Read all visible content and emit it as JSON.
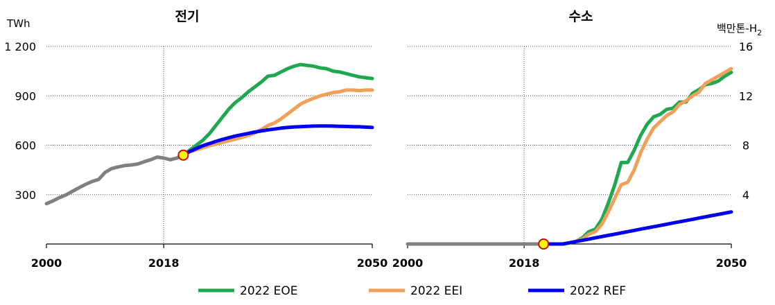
{
  "chart_data": [
    {
      "type": "line",
      "title": "전기",
      "ylabel": "TWh",
      "xlim": [
        2000,
        2050
      ],
      "ylim": [
        0,
        1200
      ],
      "yticks": [
        "300",
        "600",
        "900",
        "1 200"
      ],
      "ytick_values": [
        300,
        600,
        900,
        1200
      ],
      "xticks": [
        "2000",
        "2018",
        "2050"
      ],
      "xtick_values": [
        2000,
        2018,
        2050
      ],
      "reference_year": 2018,
      "grid": "horizontal dotted",
      "marker": {
        "x": 2021,
        "y": 540
      },
      "history": {
        "x": [
          2000,
          2001,
          2002,
          2003,
          2004,
          2005,
          2006,
          2007,
          2008,
          2009,
          2010,
          2011,
          2012,
          2013,
          2014,
          2015,
          2016,
          2017,
          2018,
          2019,
          2020,
          2021
        ],
        "y": [
          245,
          262,
          282,
          298,
          320,
          342,
          362,
          380,
          392,
          435,
          458,
          468,
          476,
          480,
          486,
          500,
          512,
          528,
          522,
          512,
          522,
          540
        ]
      },
      "series": [
        {
          "name": "2022 EOE",
          "color": "#1fa84f",
          "x": [
            2021,
            2022,
            2023,
            2024,
            2025,
            2026,
            2027,
            2028,
            2029,
            2030,
            2031,
            2032,
            2033,
            2034,
            2035,
            2036,
            2037,
            2038,
            2039,
            2040,
            2041,
            2042,
            2043,
            2044,
            2045,
            2046,
            2047,
            2048,
            2049,
            2050
          ],
          "y": [
            540,
            570,
            600,
            630,
            670,
            720,
            770,
            820,
            860,
            890,
            925,
            955,
            985,
            1020,
            1025,
            1045,
            1065,
            1080,
            1090,
            1085,
            1080,
            1070,
            1065,
            1050,
            1045,
            1035,
            1025,
            1015,
            1010,
            1005
          ]
        },
        {
          "name": "2022 EEI",
          "color": "#f0a05a",
          "x": [
            2021,
            2022,
            2023,
            2024,
            2025,
            2026,
            2027,
            2028,
            2029,
            2030,
            2031,
            2032,
            2033,
            2034,
            2035,
            2036,
            2037,
            2038,
            2039,
            2040,
            2041,
            2042,
            2043,
            2044,
            2045,
            2046,
            2047,
            2048,
            2049,
            2050
          ],
          "y": [
            540,
            560,
            572,
            585,
            597,
            607,
            617,
            627,
            637,
            648,
            660,
            675,
            695,
            720,
            735,
            760,
            790,
            820,
            850,
            870,
            885,
            900,
            910,
            920,
            925,
            935,
            935,
            932,
            935,
            935
          ]
        },
        {
          "name": "2022 REF",
          "color": "#0000ee",
          "x": [
            2021,
            2022,
            2023,
            2024,
            2025,
            2026,
            2027,
            2028,
            2029,
            2030,
            2031,
            2032,
            2033,
            2034,
            2035,
            2036,
            2037,
            2038,
            2039,
            2040,
            2041,
            2042,
            2043,
            2044,
            2045,
            2046,
            2047,
            2048,
            2049,
            2050
          ],
          "y": [
            540,
            562,
            580,
            597,
            610,
            623,
            635,
            646,
            656,
            664,
            672,
            680,
            687,
            693,
            698,
            704,
            708,
            711,
            713,
            715,
            716,
            717,
            717,
            716,
            715,
            714,
            713,
            712,
            710,
            708
          ]
        }
      ]
    },
    {
      "type": "line",
      "title": "수소",
      "ylabel_main": "백만톤-H",
      "ylabel_sub": "2",
      "xlim": [
        2000,
        2050
      ],
      "ylim": [
        0,
        16
      ],
      "yticks": [
        "4",
        "8",
        "12",
        "16"
      ],
      "ytick_values": [
        4,
        8,
        12,
        16
      ],
      "xticks": [
        "2000",
        "2018",
        "2050"
      ],
      "xtick_values": [
        2000,
        2018,
        2050
      ],
      "reference_year": 2018,
      "grid": "horizontal dotted",
      "marker": {
        "x": 2021,
        "y": 0
      },
      "history": {
        "x": [
          2000,
          2021
        ],
        "y": [
          0,
          0
        ]
      },
      "series": [
        {
          "name": "2022 EOE",
          "color": "#1fa84f",
          "x": [
            2021,
            2022,
            2023,
            2024,
            2025,
            2026,
            2027,
            2028,
            2029,
            2030,
            2031,
            2032,
            2033,
            2034,
            2035,
            2036,
            2037,
            2038,
            2039,
            2040,
            2041,
            2042,
            2043,
            2044,
            2045,
            2046,
            2047,
            2048,
            2049,
            2050
          ],
          "y": [
            0,
            0,
            0,
            0,
            0.1,
            0.2,
            0.5,
            1.0,
            1.2,
            2.0,
            3.3,
            4.8,
            6.6,
            6.6,
            7.6,
            8.8,
            9.7,
            10.3,
            10.5,
            10.9,
            11.0,
            11.5,
            11.5,
            12.2,
            12.5,
            12.9,
            13.0,
            13.2,
            13.6,
            13.9
          ]
        },
        {
          "name": "2022 EEI",
          "color": "#f0a05a",
          "x": [
            2021,
            2022,
            2023,
            2024,
            2025,
            2026,
            2027,
            2028,
            2029,
            2030,
            2031,
            2032,
            2033,
            2034,
            2035,
            2036,
            2037,
            2038,
            2039,
            2040,
            2041,
            2042,
            2043,
            2044,
            2045,
            2046,
            2047,
            2048,
            2049,
            2050
          ],
          "y": [
            0,
            0,
            0,
            0,
            0.1,
            0.2,
            0.4,
            0.8,
            1.0,
            1.6,
            2.6,
            3.7,
            4.8,
            5.0,
            6.0,
            7.4,
            8.5,
            9.4,
            9.9,
            10.4,
            10.7,
            11.3,
            11.6,
            12.0,
            12.3,
            13.0,
            13.3,
            13.6,
            13.9,
            14.2
          ]
        },
        {
          "name": "2022 REF",
          "color": "#0000ee",
          "x": [
            2021,
            2022,
            2023,
            2024,
            2025,
            2026,
            2027,
            2028,
            2029,
            2030,
            2031,
            2032,
            2033,
            2034,
            2035,
            2036,
            2037,
            2038,
            2039,
            2040,
            2041,
            2042,
            2043,
            2044,
            2045,
            2046,
            2047,
            2048,
            2049,
            2050
          ],
          "y": [
            0,
            0,
            0,
            0,
            0.1,
            0.2,
            0.3,
            0.4,
            0.5,
            0.6,
            0.7,
            0.8,
            0.9,
            1.0,
            1.1,
            1.2,
            1.3,
            1.4,
            1.5,
            1.6,
            1.7,
            1.8,
            1.9,
            2.0,
            2.1,
            2.2,
            2.3,
            2.4,
            2.5,
            2.6
          ]
        }
      ]
    }
  ],
  "history_color": "#808080",
  "legend": [
    {
      "label": "2022 EOE",
      "color": "#1fa84f"
    },
    {
      "label": "2022 EEI",
      "color": "#f0a05a"
    },
    {
      "label": "2022 REF",
      "color": "#0000ee"
    }
  ]
}
